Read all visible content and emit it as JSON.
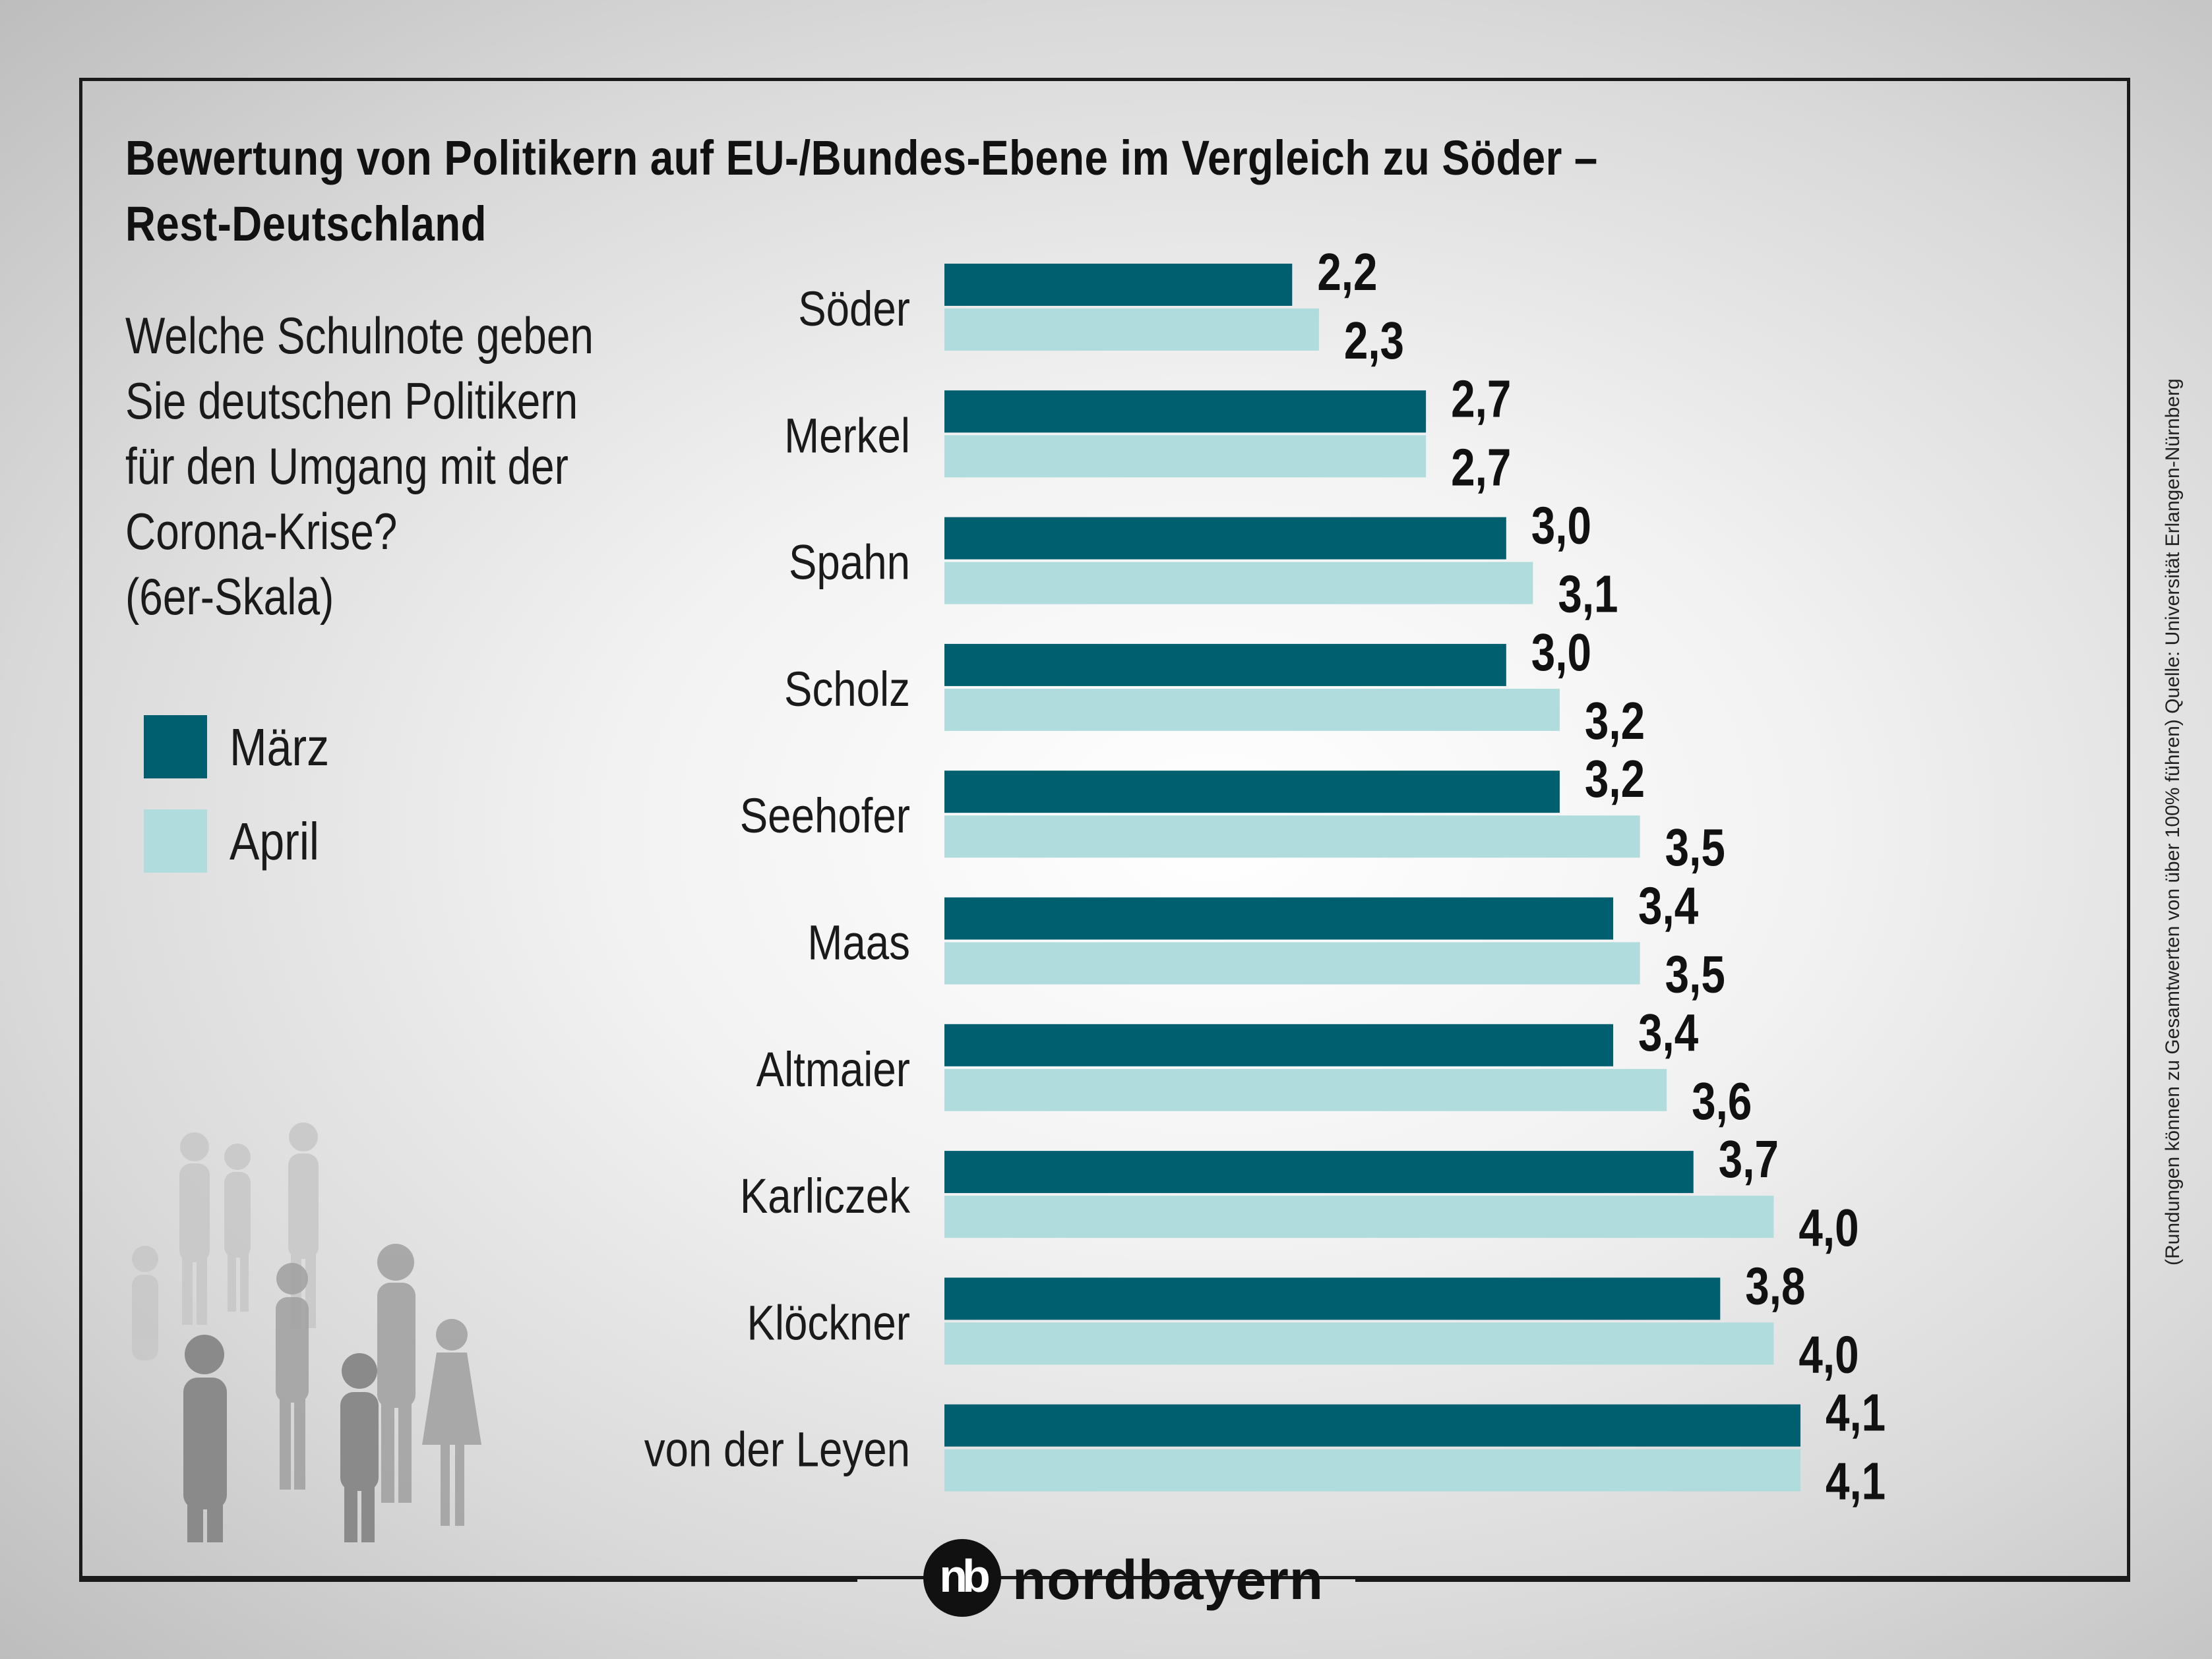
{
  "title_line1": "Bewertung von Politikern auf EU-/Bundes-Ebene im Vergleich zu Söder –",
  "title_line2": "Rest-Deutschland",
  "question": "Welche Schulnote geben\nSie deutschen Politikern\nfür den Umgang mit der\nCorona-Krise?\n(6er-Skala)",
  "source_note": "(Rundungen können zu Gesamtwerten von über 100% führen) Quelle: Universität Erlangen-Nürnberg",
  "logo_text": "nordbayern",
  "logo_mark": "nb",
  "colors": {
    "maerz": "#005f6e",
    "april": "#b0dcdd",
    "text": "#111111"
  },
  "chart_data": {
    "type": "bar",
    "orientation": "horizontal",
    "title": "Bewertung von Politikern auf EU-/Bundes-Ebene im Vergleich zu Söder – Rest-Deutschland",
    "categories": [
      "Söder",
      "Merkel",
      "Spahn",
      "Scholz",
      "Seehofer",
      "Maas",
      "Altmaier",
      "Karliczek",
      "Klöckner",
      "von der Leyen"
    ],
    "series": [
      {
        "name": "März",
        "values": [
          2.2,
          2.7,
          3.0,
          3.0,
          3.2,
          3.4,
          3.4,
          3.7,
          3.8,
          4.1
        ],
        "labels": [
          "2,2",
          "2,7",
          "3,0",
          "3,0",
          "3,2",
          "3,4",
          "3,4",
          "3,7",
          "3,8",
          "4,1"
        ]
      },
      {
        "name": "April",
        "values": [
          2.3,
          2.7,
          3.1,
          3.2,
          3.5,
          3.5,
          3.6,
          4.0,
          4.0,
          4.1
        ],
        "labels": [
          "2,3",
          "2,7",
          "3,1",
          "3,2",
          "3,5",
          "3,5",
          "3,6",
          "4,0",
          "4,0",
          "4,1"
        ]
      }
    ],
    "xlim": [
      0.9,
      4.1
    ],
    "legend": "left",
    "grid": false
  }
}
